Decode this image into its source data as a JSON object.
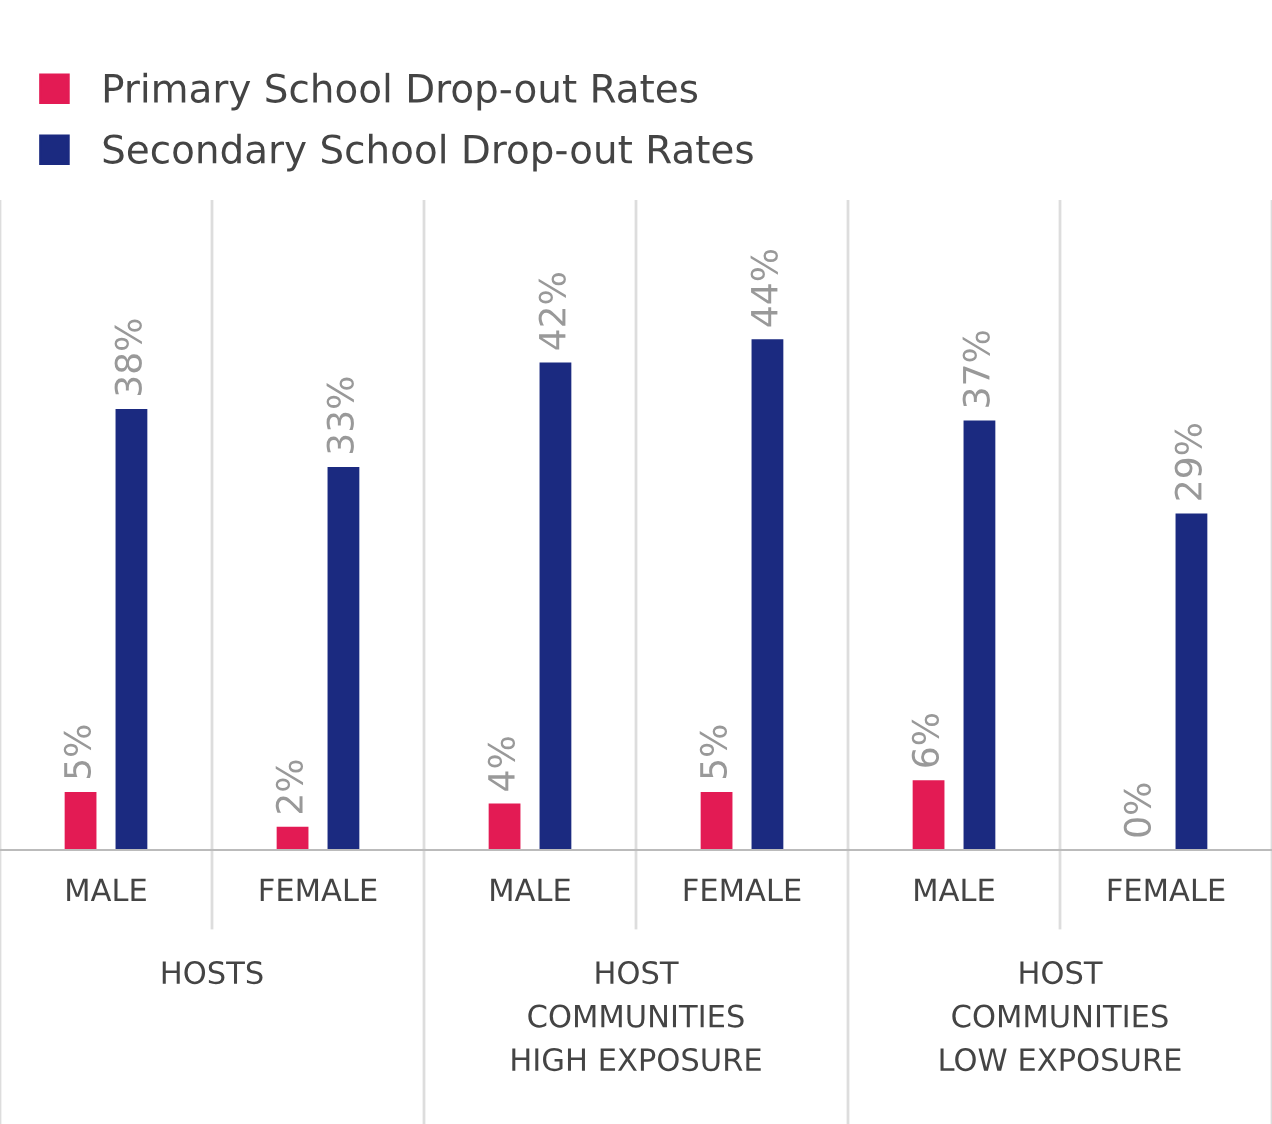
{
  "chart_data": {
    "type": "bar",
    "categories": [
      "MALE",
      "FEMALE",
      "MALE",
      "FEMALE",
      "MALE",
      "FEMALE"
    ],
    "series": [
      {
        "name": "Primary School Drop-out Rates",
        "color": "#e31b54",
        "values": [
          5,
          2,
          4,
          5,
          6,
          0
        ],
        "value_labels": [
          "5%",
          "2%",
          "4%",
          "5%",
          "6%",
          "0%"
        ]
      },
      {
        "name": "Secondary School Drop-out Rates",
        "color": "#1b2a80",
        "values": [
          38,
          33,
          42,
          44,
          37,
          29
        ],
        "value_labels": [
          "38%",
          "33%",
          "42%",
          "44%",
          "37%",
          "29%"
        ]
      }
    ],
    "annotations": [
      "HOSTS",
      "HOST\nCOMMUNITIES\nHIGH EXPOSURE",
      "HOST\nCOMMUNITIES\nLOW EXPOSURE"
    ],
    "ylim": [
      0,
      56
    ],
    "legend": "top left",
    "grid": false
  }
}
